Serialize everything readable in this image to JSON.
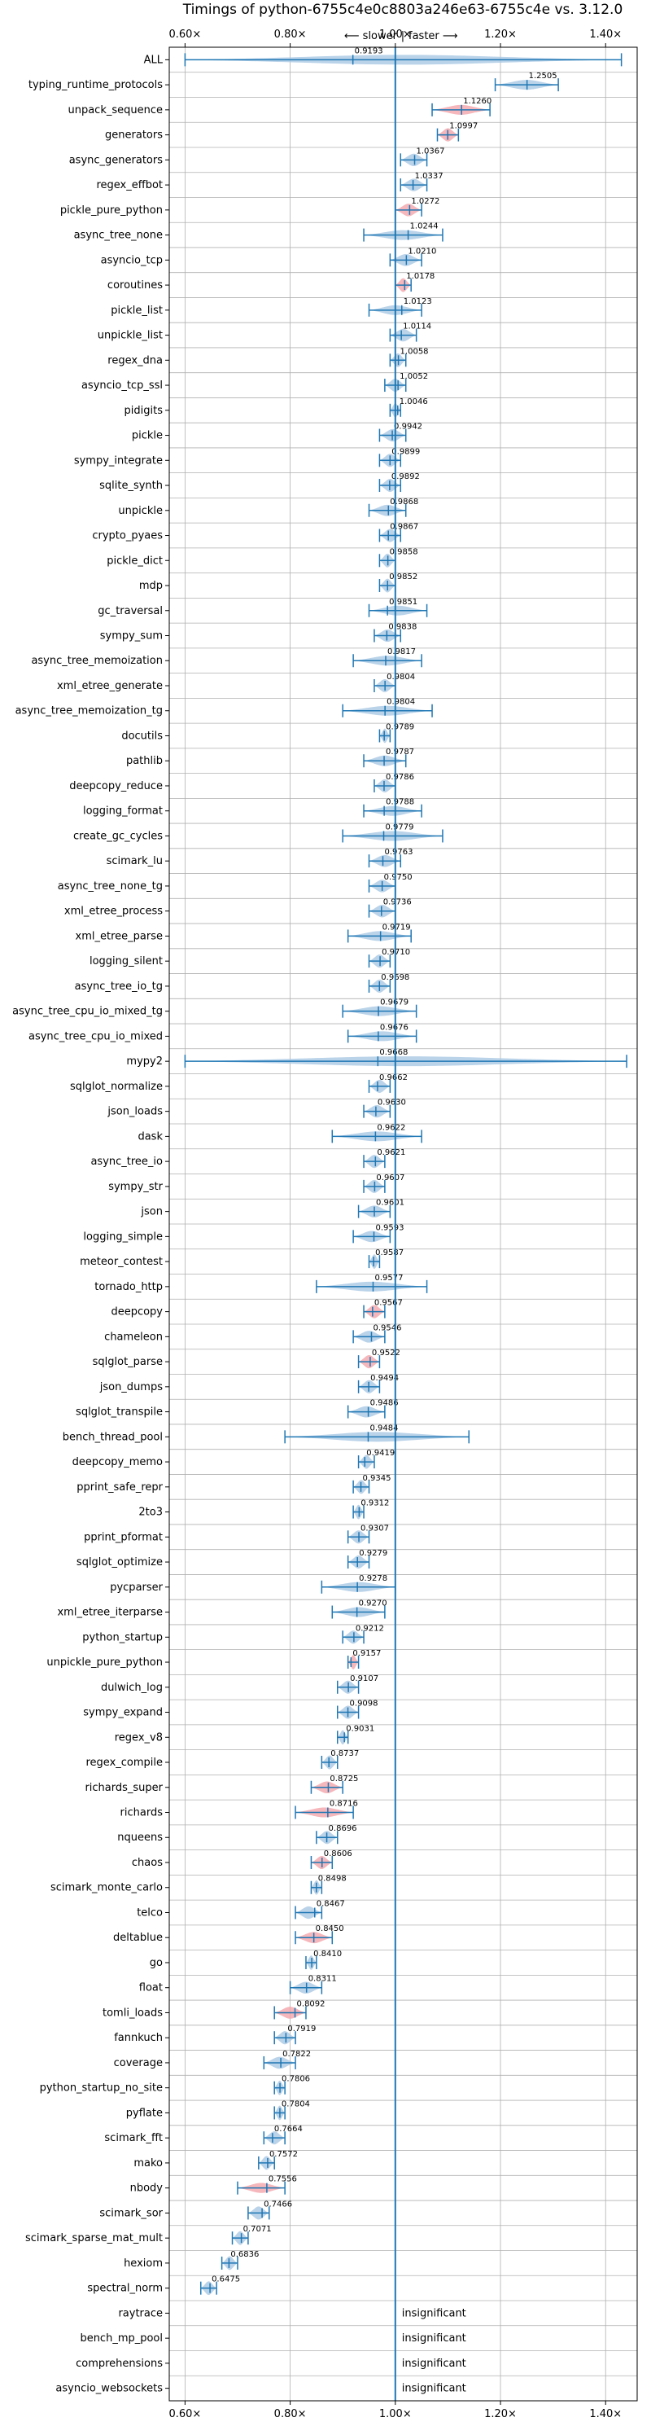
{
  "chart_data": {
    "type": "violin",
    "title": "Timings of python-6755c4e0c8803a246e63-6755c4e vs. 3.12.0",
    "direction_slower": "⟵ slower",
    "direction_faster": "faster ⟶",
    "xlim": [
      0.57,
      1.46
    ],
    "xticks": [
      0.6,
      0.8,
      1.0,
      1.2,
      1.4
    ],
    "xtick_labels": [
      "0.60×",
      "0.80×",
      "1.00×",
      "1.20×",
      "1.40×"
    ],
    "grid": true,
    "reference_line": 1.0,
    "insignificant_label": "insignificant",
    "benchmarks": [
      {
        "name": "ALL",
        "value": "0.9193",
        "center": 0.9193,
        "lo": 0.6,
        "hi": 1.43,
        "sig": false
      },
      {
        "name": "typing_runtime_protocols",
        "value": "1.2505",
        "center": 1.2505,
        "lo": 1.19,
        "hi": 1.31,
        "sig": false
      },
      {
        "name": "unpack_sequence",
        "value": "1.1260",
        "center": 1.126,
        "lo": 1.07,
        "hi": 1.18,
        "sig": true
      },
      {
        "name": "generators",
        "value": "1.0997",
        "center": 1.0997,
        "lo": 1.08,
        "hi": 1.12,
        "sig": true
      },
      {
        "name": "async_generators",
        "value": "1.0367",
        "center": 1.0367,
        "lo": 1.01,
        "hi": 1.06,
        "sig": false
      },
      {
        "name": "regex_effbot",
        "value": "1.0337",
        "center": 1.0337,
        "lo": 1.01,
        "hi": 1.06,
        "sig": false
      },
      {
        "name": "pickle_pure_python",
        "value": "1.0272",
        "center": 1.0272,
        "lo": 1.0,
        "hi": 1.05,
        "sig": true
      },
      {
        "name": "async_tree_none",
        "value": "1.0244",
        "center": 1.0244,
        "lo": 0.94,
        "hi": 1.09,
        "sig": false
      },
      {
        "name": "asyncio_tcp",
        "value": "1.0210",
        "center": 1.021,
        "lo": 0.99,
        "hi": 1.05,
        "sig": false
      },
      {
        "name": "coroutines",
        "value": "1.0178",
        "center": 1.0178,
        "lo": 1.0,
        "hi": 1.03,
        "sig": true
      },
      {
        "name": "pickle_list",
        "value": "1.0123",
        "center": 1.0123,
        "lo": 0.95,
        "hi": 1.05,
        "sig": false
      },
      {
        "name": "unpickle_list",
        "value": "1.0114",
        "center": 1.0114,
        "lo": 0.99,
        "hi": 1.04,
        "sig": false
      },
      {
        "name": "regex_dna",
        "value": "1.0058",
        "center": 1.0058,
        "lo": 0.99,
        "hi": 1.02,
        "sig": false
      },
      {
        "name": "asyncio_tcp_ssl",
        "value": "1.0052",
        "center": 1.0052,
        "lo": 0.98,
        "hi": 1.02,
        "sig": false
      },
      {
        "name": "pidigits",
        "value": "1.0046",
        "center": 1.0046,
        "lo": 0.99,
        "hi": 1.01,
        "sig": false
      },
      {
        "name": "pickle",
        "value": "0.9942",
        "center": 0.9942,
        "lo": 0.97,
        "hi": 1.02,
        "sig": false
      },
      {
        "name": "sympy_integrate",
        "value": "0.9899",
        "center": 0.9899,
        "lo": 0.97,
        "hi": 1.01,
        "sig": false
      },
      {
        "name": "sqlite_synth",
        "value": "0.9892",
        "center": 0.9892,
        "lo": 0.97,
        "hi": 1.01,
        "sig": false
      },
      {
        "name": "unpickle",
        "value": "0.9868",
        "center": 0.9868,
        "lo": 0.95,
        "hi": 1.02,
        "sig": false
      },
      {
        "name": "crypto_pyaes",
        "value": "0.9867",
        "center": 0.9867,
        "lo": 0.97,
        "hi": 1.01,
        "sig": false
      },
      {
        "name": "pickle_dict",
        "value": "0.9858",
        "center": 0.9858,
        "lo": 0.97,
        "hi": 1.0,
        "sig": false
      },
      {
        "name": "mdp",
        "value": "0.9852",
        "center": 0.9852,
        "lo": 0.97,
        "hi": 1.0,
        "sig": false
      },
      {
        "name": "gc_traversal",
        "value": "0.9851",
        "center": 0.9851,
        "lo": 0.95,
        "hi": 1.06,
        "sig": false
      },
      {
        "name": "sympy_sum",
        "value": "0.9838",
        "center": 0.9838,
        "lo": 0.96,
        "hi": 1.01,
        "sig": false
      },
      {
        "name": "async_tree_memoization",
        "value": "0.9817",
        "center": 0.9817,
        "lo": 0.92,
        "hi": 1.05,
        "sig": false
      },
      {
        "name": "xml_etree_generate",
        "value": "0.9804",
        "center": 0.9804,
        "lo": 0.96,
        "hi": 1.0,
        "sig": false
      },
      {
        "name": "async_tree_memoization_tg",
        "value": "0.9804",
        "center": 0.9804,
        "lo": 0.9,
        "hi": 1.07,
        "sig": false
      },
      {
        "name": "docutils",
        "value": "0.9789",
        "center": 0.9789,
        "lo": 0.97,
        "hi": 0.99,
        "sig": false
      },
      {
        "name": "pathlib",
        "value": "0.9787",
        "center": 0.9787,
        "lo": 0.94,
        "hi": 1.02,
        "sig": false
      },
      {
        "name": "deepcopy_reduce",
        "value": "0.9786",
        "center": 0.9786,
        "lo": 0.96,
        "hi": 1.0,
        "sig": false
      },
      {
        "name": "logging_format",
        "value": "0.9788",
        "center": 0.9788,
        "lo": 0.94,
        "hi": 1.05,
        "sig": false
      },
      {
        "name": "create_gc_cycles",
        "value": "0.9779",
        "center": 0.9779,
        "lo": 0.9,
        "hi": 1.09,
        "sig": false
      },
      {
        "name": "scimark_lu",
        "value": "0.9763",
        "center": 0.9763,
        "lo": 0.95,
        "hi": 1.01,
        "sig": false
      },
      {
        "name": "async_tree_none_tg",
        "value": "0.9750",
        "center": 0.975,
        "lo": 0.95,
        "hi": 1.0,
        "sig": false
      },
      {
        "name": "xml_etree_process",
        "value": "0.9736",
        "center": 0.9736,
        "lo": 0.95,
        "hi": 1.0,
        "sig": false
      },
      {
        "name": "xml_etree_parse",
        "value": "0.9719",
        "center": 0.9719,
        "lo": 0.91,
        "hi": 1.03,
        "sig": false
      },
      {
        "name": "logging_silent",
        "value": "0.9710",
        "center": 0.971,
        "lo": 0.95,
        "hi": 0.99,
        "sig": false
      },
      {
        "name": "async_tree_io_tg",
        "value": "0.9698",
        "center": 0.9698,
        "lo": 0.95,
        "hi": 0.99,
        "sig": false
      },
      {
        "name": "async_tree_cpu_io_mixed_tg",
        "value": "0.9679",
        "center": 0.9679,
        "lo": 0.9,
        "hi": 1.04,
        "sig": false
      },
      {
        "name": "async_tree_cpu_io_mixed",
        "value": "0.9676",
        "center": 0.9676,
        "lo": 0.91,
        "hi": 1.04,
        "sig": false
      },
      {
        "name": "mypy2",
        "value": "0.9668",
        "center": 0.9668,
        "lo": 0.6,
        "hi": 1.44,
        "sig": false
      },
      {
        "name": "sqlglot_normalize",
        "value": "0.9662",
        "center": 0.9662,
        "lo": 0.95,
        "hi": 0.99,
        "sig": false
      },
      {
        "name": "json_loads",
        "value": "0.9630",
        "center": 0.963,
        "lo": 0.94,
        "hi": 0.99,
        "sig": false
      },
      {
        "name": "dask",
        "value": "0.9622",
        "center": 0.9622,
        "lo": 0.88,
        "hi": 1.05,
        "sig": false
      },
      {
        "name": "async_tree_io",
        "value": "0.9621",
        "center": 0.9621,
        "lo": 0.94,
        "hi": 0.98,
        "sig": false
      },
      {
        "name": "sympy_str",
        "value": "0.9607",
        "center": 0.9607,
        "lo": 0.94,
        "hi": 0.98,
        "sig": false
      },
      {
        "name": "json",
        "value": "0.9601",
        "center": 0.9601,
        "lo": 0.93,
        "hi": 0.99,
        "sig": false
      },
      {
        "name": "logging_simple",
        "value": "0.9593",
        "center": 0.9593,
        "lo": 0.92,
        "hi": 0.99,
        "sig": false
      },
      {
        "name": "meteor_contest",
        "value": "0.9587",
        "center": 0.9587,
        "lo": 0.95,
        "hi": 0.97,
        "sig": false
      },
      {
        "name": "tornado_http",
        "value": "0.9577",
        "center": 0.9577,
        "lo": 0.85,
        "hi": 1.06,
        "sig": false
      },
      {
        "name": "deepcopy",
        "value": "0.9567",
        "center": 0.9567,
        "lo": 0.94,
        "hi": 0.98,
        "sig": true
      },
      {
        "name": "chameleon",
        "value": "0.9546",
        "center": 0.9546,
        "lo": 0.92,
        "hi": 0.98,
        "sig": false
      },
      {
        "name": "sqlglot_parse",
        "value": "0.9522",
        "center": 0.9522,
        "lo": 0.93,
        "hi": 0.97,
        "sig": true
      },
      {
        "name": "json_dumps",
        "value": "0.9494",
        "center": 0.9494,
        "lo": 0.93,
        "hi": 0.97,
        "sig": false
      },
      {
        "name": "sqlglot_transpile",
        "value": "0.9486",
        "center": 0.9486,
        "lo": 0.91,
        "hi": 0.98,
        "sig": false
      },
      {
        "name": "bench_thread_pool",
        "value": "0.9484",
        "center": 0.9484,
        "lo": 0.79,
        "hi": 1.14,
        "sig": false
      },
      {
        "name": "deepcopy_memo",
        "value": "0.9419",
        "center": 0.9419,
        "lo": 0.93,
        "hi": 0.96,
        "sig": false
      },
      {
        "name": "pprint_safe_repr",
        "value": "0.9345",
        "center": 0.9345,
        "lo": 0.92,
        "hi": 0.95,
        "sig": false
      },
      {
        "name": "2to3",
        "value": "0.9312",
        "center": 0.9312,
        "lo": 0.92,
        "hi": 0.94,
        "sig": false
      },
      {
        "name": "pprint_pformat",
        "value": "0.9307",
        "center": 0.9307,
        "lo": 0.91,
        "hi": 0.95,
        "sig": false
      },
      {
        "name": "sqlglot_optimize",
        "value": "0.9279",
        "center": 0.9279,
        "lo": 0.91,
        "hi": 0.95,
        "sig": false
      },
      {
        "name": "pycparser",
        "value": "0.9278",
        "center": 0.9278,
        "lo": 0.86,
        "hi": 1.0,
        "sig": false
      },
      {
        "name": "xml_etree_iterparse",
        "value": "0.9270",
        "center": 0.927,
        "lo": 0.88,
        "hi": 0.98,
        "sig": false
      },
      {
        "name": "python_startup",
        "value": "0.9212",
        "center": 0.9212,
        "lo": 0.9,
        "hi": 0.94,
        "sig": false
      },
      {
        "name": "unpickle_pure_python",
        "value": "0.9157",
        "center": 0.9157,
        "lo": 0.91,
        "hi": 0.93,
        "sig": true
      },
      {
        "name": "dulwich_log",
        "value": "0.9107",
        "center": 0.9107,
        "lo": 0.89,
        "hi": 0.93,
        "sig": false
      },
      {
        "name": "sympy_expand",
        "value": "0.9098",
        "center": 0.9098,
        "lo": 0.89,
        "hi": 0.93,
        "sig": false
      },
      {
        "name": "regex_v8",
        "value": "0.9031",
        "center": 0.9031,
        "lo": 0.89,
        "hi": 0.91,
        "sig": false
      },
      {
        "name": "regex_compile",
        "value": "0.8737",
        "center": 0.8737,
        "lo": 0.86,
        "hi": 0.89,
        "sig": false
      },
      {
        "name": "richards_super",
        "value": "0.8725",
        "center": 0.8725,
        "lo": 0.84,
        "hi": 0.9,
        "sig": true
      },
      {
        "name": "richards",
        "value": "0.8716",
        "center": 0.8716,
        "lo": 0.81,
        "hi": 0.92,
        "sig": true
      },
      {
        "name": "nqueens",
        "value": "0.8696",
        "center": 0.8696,
        "lo": 0.85,
        "hi": 0.89,
        "sig": false
      },
      {
        "name": "chaos",
        "value": "0.8606",
        "center": 0.8606,
        "lo": 0.84,
        "hi": 0.88,
        "sig": true
      },
      {
        "name": "scimark_monte_carlo",
        "value": "0.8498",
        "center": 0.8498,
        "lo": 0.84,
        "hi": 0.86,
        "sig": false
      },
      {
        "name": "telco",
        "value": "0.8467",
        "center": 0.8467,
        "lo": 0.81,
        "hi": 0.86,
        "sig": false
      },
      {
        "name": "deltablue",
        "value": "0.8450",
        "center": 0.845,
        "lo": 0.81,
        "hi": 0.88,
        "sig": true
      },
      {
        "name": "go",
        "value": "0.8410",
        "center": 0.841,
        "lo": 0.83,
        "hi": 0.85,
        "sig": false
      },
      {
        "name": "float",
        "value": "0.8311",
        "center": 0.8311,
        "lo": 0.8,
        "hi": 0.86,
        "sig": false
      },
      {
        "name": "tomli_loads",
        "value": "0.8092",
        "center": 0.8092,
        "lo": 0.77,
        "hi": 0.83,
        "sig": true
      },
      {
        "name": "fannkuch",
        "value": "0.7919",
        "center": 0.7919,
        "lo": 0.77,
        "hi": 0.81,
        "sig": false
      },
      {
        "name": "coverage",
        "value": "0.7822",
        "center": 0.7822,
        "lo": 0.75,
        "hi": 0.81,
        "sig": false
      },
      {
        "name": "python_startup_no_site",
        "value": "0.7806",
        "center": 0.7806,
        "lo": 0.77,
        "hi": 0.79,
        "sig": false
      },
      {
        "name": "pyflate",
        "value": "0.7804",
        "center": 0.7804,
        "lo": 0.77,
        "hi": 0.79,
        "sig": false
      },
      {
        "name": "scimark_fft",
        "value": "0.7664",
        "center": 0.7664,
        "lo": 0.75,
        "hi": 0.79,
        "sig": false
      },
      {
        "name": "mako",
        "value": "0.7572",
        "center": 0.7572,
        "lo": 0.74,
        "hi": 0.77,
        "sig": false
      },
      {
        "name": "nbody",
        "value": "0.7556",
        "center": 0.7556,
        "lo": 0.7,
        "hi": 0.79,
        "sig": true
      },
      {
        "name": "scimark_sor",
        "value": "0.7466",
        "center": 0.7466,
        "lo": 0.72,
        "hi": 0.76,
        "sig": false
      },
      {
        "name": "scimark_sparse_mat_mult",
        "value": "0.7071",
        "center": 0.7071,
        "lo": 0.69,
        "hi": 0.72,
        "sig": false
      },
      {
        "name": "hexiom",
        "value": "0.6836",
        "center": 0.6836,
        "lo": 0.67,
        "hi": 0.7,
        "sig": false
      },
      {
        "name": "spectral_norm",
        "value": "0.6475",
        "center": 0.6475,
        "lo": 0.63,
        "hi": 0.66,
        "sig": false
      },
      {
        "name": "raytrace",
        "value": "",
        "center": null,
        "lo": null,
        "hi": null,
        "sig": false,
        "insignificant": true
      },
      {
        "name": "bench_mp_pool",
        "value": "",
        "center": null,
        "lo": null,
        "hi": null,
        "sig": false,
        "insignificant": true
      },
      {
        "name": "comprehensions",
        "value": "",
        "center": null,
        "lo": null,
        "hi": null,
        "sig": false,
        "insignificant": true
      },
      {
        "name": "asyncio_websockets",
        "value": "",
        "center": null,
        "lo": null,
        "hi": null,
        "sig": false,
        "insignificant": true
      }
    ],
    "colors": {
      "violin": "#a9c8e3",
      "significant": "#f3a5aa",
      "line": "#1f77b4",
      "reference": "#1f77b4",
      "grid": "#b0b0b0"
    }
  }
}
